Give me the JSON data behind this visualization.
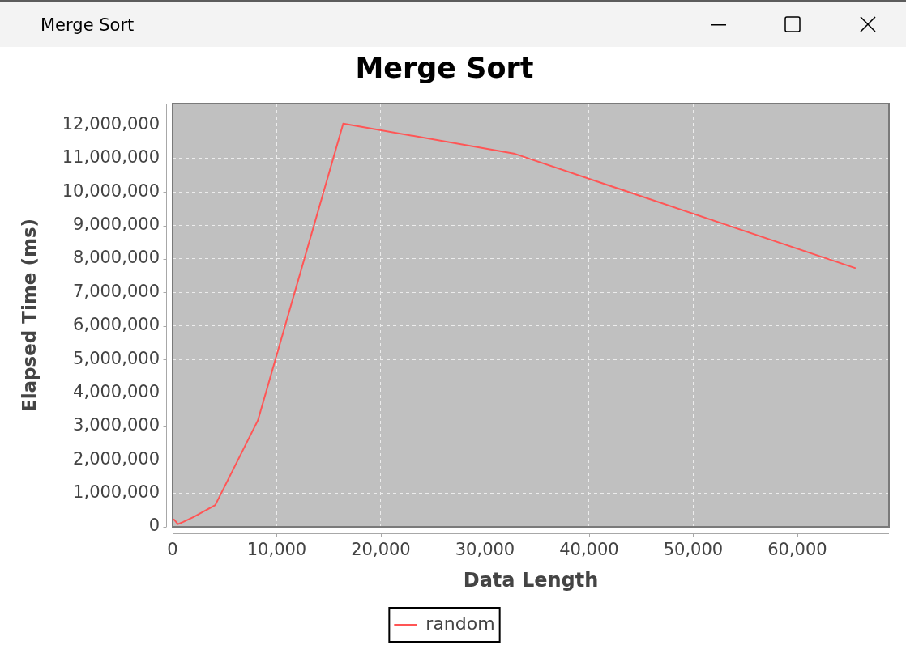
{
  "chart_data": {
    "type": "line",
    "title": "Merge Sort",
    "xlabel": "Data Length",
    "ylabel": "Elapsed Time (ms)",
    "annotations": [
      "Merge Sort"
    ],
    "x": [
      128,
      512,
      1024,
      2048,
      4096,
      8192,
      16384,
      32768,
      65536
    ],
    "series": [
      {
        "name": "random",
        "color": "#ff5555",
        "values": [
          220000,
          80000,
          150000,
          300000,
          650000,
          3180000,
          12040000,
          11150000,
          7730000
        ]
      }
    ],
    "xlim": [
      0,
      68800
    ],
    "ylim": [
      0,
      12640000
    ],
    "xticks": [
      0,
      {
        "value": 10000,
        "label": "10,000"
      },
      {
        "value": 20000,
        "label": "20,000"
      },
      {
        "value": 30000,
        "label": "30,000"
      },
      {
        "value": 40000,
        "label": "40,000"
      },
      {
        "value": 50000,
        "label": "50,000"
      },
      {
        "value": 60000,
        "label": "60,000"
      }
    ],
    "yticks": [
      0,
      {
        "value": 1000000,
        "label": "1,000,000"
      },
      {
        "value": 2000000,
        "label": "2,000,000"
      },
      {
        "value": 3000000,
        "label": "3,000,000"
      },
      {
        "value": 4000000,
        "label": "4,000,000"
      },
      {
        "value": 5000000,
        "label": "5,000,000"
      },
      {
        "value": 6000000,
        "label": "6,000,000"
      },
      {
        "value": 7000000,
        "label": "7,000,000"
      },
      {
        "value": 8000000,
        "label": "8,000,000"
      },
      {
        "value": 9000000,
        "label": "9,000,000"
      },
      {
        "value": 10000000,
        "label": "10,000,000"
      },
      {
        "value": 11000000,
        "label": "11,000,000"
      },
      {
        "value": 12000000,
        "label": "12,000,000"
      }
    ],
    "grid": true,
    "legend": "bottom",
    "marker": "none",
    "line_style": "solid"
  }
}
